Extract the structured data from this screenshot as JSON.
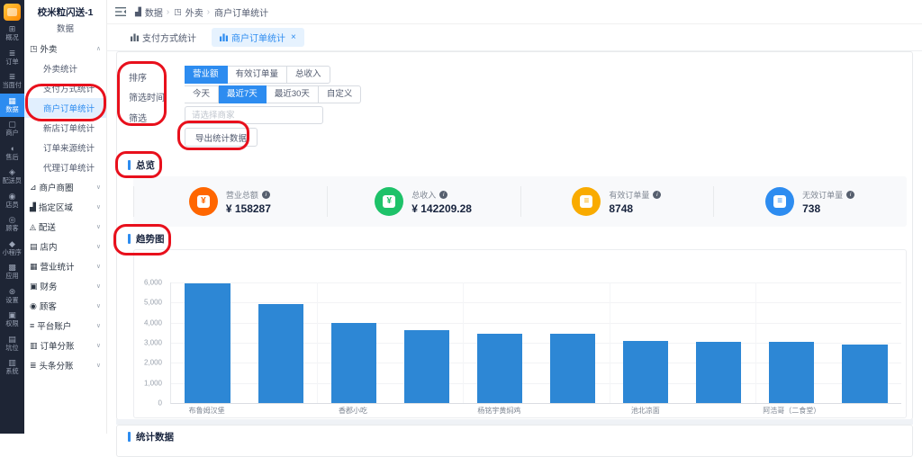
{
  "app_title": "校米粒闪送-1",
  "accent": "#2d8cf0",
  "rail": {
    "items": [
      {
        "icon": "⊞",
        "label": "概况"
      },
      {
        "icon": "≣",
        "label": "订单"
      },
      {
        "icon": "≣",
        "label": "当面付"
      },
      {
        "icon": "▦",
        "label": "数据",
        "active": true
      },
      {
        "icon": "▢",
        "label": "商户"
      },
      {
        "icon": "◖",
        "label": "售后"
      },
      {
        "icon": "◈",
        "label": "配送员"
      },
      {
        "icon": "◉",
        "label": "店员"
      },
      {
        "icon": "◎",
        "label": "顾客"
      },
      {
        "icon": "◆",
        "label": "小程序"
      },
      {
        "icon": "▩",
        "label": "应用"
      },
      {
        "icon": "⊛",
        "label": "设置"
      },
      {
        "icon": "▣",
        "label": "权限"
      },
      {
        "icon": "▤",
        "label": "坑位"
      },
      {
        "icon": "▥",
        "label": "系统"
      }
    ]
  },
  "sidebar": {
    "subtitle": "数据",
    "menu": [
      {
        "icon": "◳",
        "label": "外卖",
        "type": "parent",
        "caret": "∧",
        "expanded": true
      },
      {
        "label": "外卖统计",
        "type": "child"
      },
      {
        "label": "支付方式统计",
        "type": "child"
      },
      {
        "label": "商户订单统计",
        "type": "child",
        "active": true
      },
      {
        "label": "新店订单统计",
        "type": "child"
      },
      {
        "label": "订单来源统计",
        "type": "child"
      },
      {
        "label": "代理订单统计",
        "type": "child"
      },
      {
        "icon": "⊿",
        "label": "商户商圈",
        "type": "parent",
        "caret": "∨"
      },
      {
        "icon": "▟",
        "label": "指定区域",
        "type": "parent",
        "caret": "∨"
      },
      {
        "icon": "◬",
        "label": "配送",
        "type": "parent",
        "caret": "∨"
      },
      {
        "icon": "▤",
        "label": "店内",
        "type": "parent",
        "caret": "∨"
      },
      {
        "icon": "▦",
        "label": "营业统计",
        "type": "parent",
        "caret": "∨"
      },
      {
        "icon": "▣",
        "label": "财务",
        "type": "parent",
        "caret": "∨"
      },
      {
        "icon": "◉",
        "label": "顾客",
        "type": "parent",
        "caret": "∨"
      },
      {
        "icon": "≡",
        "label": "平台账户",
        "type": "parent",
        "caret": "∨"
      },
      {
        "icon": "▥",
        "label": "订单分账",
        "type": "parent",
        "caret": "∨"
      },
      {
        "icon": "≣",
        "label": "头条分账",
        "type": "parent",
        "caret": "∨"
      }
    ]
  },
  "topbar": {
    "breadcrumb": [
      {
        "icon": "▟",
        "label": "数据",
        "sep": "›"
      },
      {
        "icon": "◳",
        "label": "外卖",
        "sep": "›"
      },
      {
        "label": "商户订单统计"
      }
    ]
  },
  "tabs": [
    {
      "label": "支付方式统计"
    },
    {
      "label": "商户订单统计",
      "active": true,
      "close": "×"
    }
  ],
  "filters": {
    "sort_label": "排序",
    "sort_options": [
      {
        "label": "营业额",
        "active": true
      },
      {
        "label": "有效订单量"
      },
      {
        "label": "总收入"
      }
    ],
    "time_label": "筛选时间",
    "time_options": [
      {
        "label": "今天"
      },
      {
        "label": "最近7天",
        "active": true
      },
      {
        "label": "最近30天"
      },
      {
        "label": "自定义"
      }
    ],
    "select_label": "筛选",
    "select_placeholder": "请选择商家",
    "export_label": "导出统计数据"
  },
  "overview": {
    "section_title": "总览",
    "stats": [
      {
        "label": "营业总额",
        "info": "i",
        "value": "¥ 158287",
        "color": "#ff6600",
        "glyph": "¥"
      },
      {
        "label": "总收入",
        "info": "i",
        "value": "¥ 142209.28",
        "color": "#1ec269",
        "glyph": "¥"
      },
      {
        "label": "有效订单量",
        "info": "i",
        "value": "8748",
        "color": "#f9ab00",
        "glyph": "≡"
      },
      {
        "label": "无效订单量",
        "info": "i",
        "value": "738",
        "color": "#2d8cf0",
        "glyph": "≡"
      }
    ]
  },
  "trend": {
    "section_title": "趋势图"
  },
  "bottom": {
    "section_title": "统计数据"
  },
  "chart_data": {
    "type": "bar",
    "title": "趋势图",
    "categories": [
      "布鲁姆汉堡",
      "",
      "香郡小吃",
      "",
      "杨铭宇黄焖鸡",
      "",
      "池北凉面",
      "",
      "阿浩哥（二食堂）",
      ""
    ],
    "values": [
      5950,
      4950,
      4000,
      3650,
      3440,
      3460,
      3110,
      3060,
      3050,
      2900
    ],
    "xlabel": "",
    "ylabel": "",
    "ylim": [
      0,
      6000
    ],
    "ytick_step": 1000,
    "bar_color": "#2d87d5",
    "grid": true,
    "legend": "none"
  },
  "annotations": {
    "color": "#e8101c"
  }
}
